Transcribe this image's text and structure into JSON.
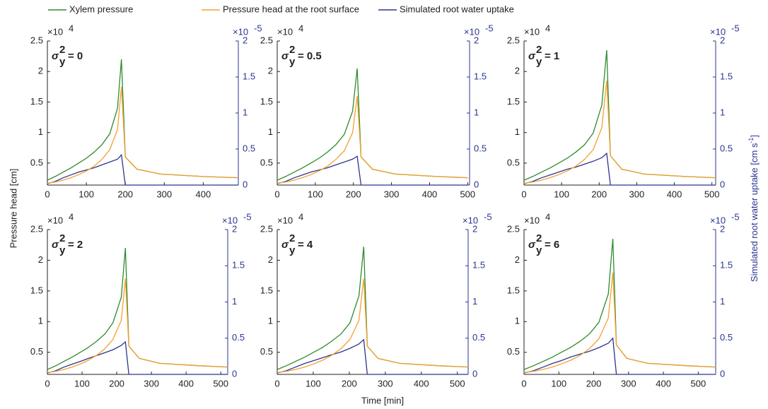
{
  "figure": {
    "xlabel": "Time [min]",
    "ylabel": "Pressure head [cm]",
    "y2label": {
      "text": "Simulated root water uptake [cm s",
      "exponent": "-1",
      "close": "]"
    },
    "y_multiplier": {
      "base": "×10",
      "exponent": "4"
    },
    "y2_multiplier": {
      "base": "×10",
      "exponent": "-5"
    }
  },
  "chart_data": [
    {
      "type": "line",
      "title": {
        "symbol": "σ",
        "superscript": "2",
        "subscript": "y",
        "text": "= 0"
      },
      "x": [
        0,
        20,
        40,
        60,
        80,
        100,
        120,
        140,
        160,
        180,
        190,
        200,
        230,
        290,
        400,
        490
      ],
      "xlim": [
        0,
        490
      ],
      "xticks": [
        0,
        100,
        200,
        300,
        400
      ],
      "ylim": [
        0.14,
        2.5
      ],
      "yticks": [
        0.5,
        1,
        1.5,
        2,
        2.5
      ],
      "y2lim": [
        0,
        2
      ],
      "y2ticks": [
        0,
        0.5,
        1,
        1.5,
        2
      ],
      "series": [
        {
          "name": "Xylem pressure",
          "color": "#2e8b2e",
          "values": [
            0.22,
            0.28,
            0.35,
            0.42,
            0.5,
            0.58,
            0.68,
            0.8,
            0.98,
            1.4,
            2.2,
            0.6,
            0.4,
            0.32,
            0.28,
            0.26
          ]
        },
        {
          "name": "Pressure head at the root surface",
          "color": "#f5a030",
          "values": [
            0.17,
            0.19,
            0.22,
            0.26,
            0.31,
            0.37,
            0.45,
            0.56,
            0.72,
            1.05,
            1.75,
            0.6,
            0.4,
            0.32,
            0.28,
            0.26
          ]
        },
        {
          "name": "Simulated root water uptake",
          "color": "#2b3590",
          "axis": "y2",
          "values": [
            0.02,
            0.05,
            0.1,
            0.14,
            0.18,
            0.21,
            0.24,
            0.28,
            0.32,
            0.36,
            0.42,
            0,
            0,
            0,
            0,
            0
          ]
        }
      ]
    },
    {
      "type": "line",
      "title": {
        "symbol": "σ",
        "superscript": "2",
        "subscript": "y",
        "text": "= 0.5"
      },
      "x": [
        0,
        22,
        44,
        66,
        88,
        110,
        132,
        154,
        176,
        198,
        210,
        220,
        250,
        310,
        420,
        500
      ],
      "xlim": [
        0,
        505
      ],
      "xticks": [
        0,
        100,
        200,
        300,
        400,
        500
      ],
      "ylim": [
        0.14,
        2.5
      ],
      "yticks": [
        0.5,
        1,
        1.5,
        2,
        2.5
      ],
      "y2lim": [
        0,
        2
      ],
      "y2ticks": [
        0,
        0.5,
        1,
        1.5,
        2
      ],
      "series": [
        {
          "name": "Xylem pressure",
          "color": "#2e8b2e",
          "values": [
            0.22,
            0.28,
            0.35,
            0.42,
            0.5,
            0.58,
            0.68,
            0.8,
            0.97,
            1.35,
            2.05,
            0.6,
            0.4,
            0.32,
            0.28,
            0.26
          ]
        },
        {
          "name": "Pressure head at the root surface",
          "color": "#f5a030",
          "values": [
            0.17,
            0.19,
            0.22,
            0.26,
            0.31,
            0.37,
            0.45,
            0.56,
            0.7,
            1.0,
            1.6,
            0.6,
            0.4,
            0.32,
            0.28,
            0.26
          ]
        },
        {
          "name": "Simulated root water uptake",
          "color": "#2b3590",
          "axis": "y2",
          "values": [
            0.02,
            0.05,
            0.1,
            0.14,
            0.18,
            0.21,
            0.24,
            0.28,
            0.32,
            0.36,
            0.4,
            0,
            0,
            0,
            0,
            0
          ]
        }
      ]
    },
    {
      "type": "line",
      "title": {
        "symbol": "σ",
        "superscript": "2",
        "subscript": "y",
        "text": "= 1"
      },
      "x": [
        0,
        23,
        46,
        69,
        92,
        115,
        138,
        161,
        184,
        207,
        220,
        230,
        260,
        320,
        430,
        510
      ],
      "xlim": [
        0,
        510
      ],
      "xticks": [
        0,
        100,
        200,
        300,
        400,
        500
      ],
      "ylim": [
        0.14,
        2.5
      ],
      "yticks": [
        0.5,
        1,
        1.5,
        2,
        2.5
      ],
      "y2lim": [
        0,
        2
      ],
      "y2ticks": [
        0,
        0.5,
        1,
        1.5,
        2
      ],
      "series": [
        {
          "name": "Xylem pressure",
          "color": "#2e8b2e",
          "values": [
            0.22,
            0.28,
            0.35,
            0.42,
            0.5,
            0.58,
            0.68,
            0.8,
            0.99,
            1.45,
            2.35,
            0.62,
            0.4,
            0.32,
            0.28,
            0.26
          ]
        },
        {
          "name": "Pressure head at the root surface",
          "color": "#f5a030",
          "values": [
            0.17,
            0.19,
            0.22,
            0.26,
            0.31,
            0.37,
            0.45,
            0.56,
            0.72,
            1.08,
            1.85,
            0.62,
            0.4,
            0.32,
            0.28,
            0.26
          ]
        },
        {
          "name": "Simulated root water uptake",
          "color": "#2b3590",
          "axis": "y2",
          "values": [
            0.02,
            0.05,
            0.1,
            0.14,
            0.18,
            0.22,
            0.25,
            0.29,
            0.33,
            0.38,
            0.44,
            0,
            0,
            0,
            0,
            0
          ]
        }
      ]
    },
    {
      "type": "line",
      "title": {
        "symbol": "σ",
        "superscript": "2",
        "subscript": "y",
        "text": "= 2"
      },
      "x": [
        0,
        24,
        47,
        71,
        95,
        118,
        142,
        166,
        189,
        213,
        225,
        235,
        265,
        325,
        440,
        520
      ],
      "xlim": [
        0,
        520
      ],
      "xticks": [
        0,
        100,
        200,
        300,
        400,
        500
      ],
      "ylim": [
        0.14,
        2.5
      ],
      "yticks": [
        0.5,
        1,
        1.5,
        2,
        2.5
      ],
      "y2lim": [
        0,
        2
      ],
      "y2ticks": [
        0,
        0.5,
        1,
        1.5,
        2
      ],
      "series": [
        {
          "name": "Xylem pressure",
          "color": "#2e8b2e",
          "values": [
            0.22,
            0.28,
            0.35,
            0.42,
            0.5,
            0.58,
            0.68,
            0.8,
            0.98,
            1.4,
            2.2,
            0.6,
            0.4,
            0.32,
            0.28,
            0.26
          ]
        },
        {
          "name": "Pressure head at the root surface",
          "color": "#f5a030",
          "values": [
            0.17,
            0.19,
            0.22,
            0.26,
            0.31,
            0.37,
            0.45,
            0.56,
            0.71,
            1.02,
            1.7,
            0.6,
            0.4,
            0.32,
            0.28,
            0.26
          ]
        },
        {
          "name": "Simulated root water uptake",
          "color": "#2b3590",
          "axis": "y2",
          "values": [
            0.02,
            0.05,
            0.1,
            0.14,
            0.18,
            0.22,
            0.26,
            0.3,
            0.34,
            0.4,
            0.45,
            0,
            0,
            0,
            0,
            0
          ]
        }
      ]
    },
    {
      "type": "line",
      "title": {
        "symbol": "σ",
        "superscript": "2",
        "subscript": "y",
        "text": "= 4"
      },
      "x": [
        0,
        25,
        50,
        76,
        101,
        126,
        151,
        177,
        202,
        227,
        240,
        250,
        280,
        340,
        450,
        530
      ],
      "xlim": [
        0,
        530
      ],
      "xticks": [
        0,
        100,
        200,
        300,
        400,
        500
      ],
      "ylim": [
        0.14,
        2.5
      ],
      "yticks": [
        0.5,
        1,
        1.5,
        2,
        2.5
      ],
      "y2lim": [
        0,
        2
      ],
      "y2ticks": [
        0,
        0.5,
        1,
        1.5,
        2
      ],
      "series": [
        {
          "name": "Xylem pressure",
          "color": "#2e8b2e",
          "values": [
            0.22,
            0.28,
            0.35,
            0.42,
            0.5,
            0.58,
            0.68,
            0.8,
            0.98,
            1.42,
            2.22,
            0.6,
            0.4,
            0.32,
            0.28,
            0.26
          ]
        },
        {
          "name": "Pressure head at the root surface",
          "color": "#f5a030",
          "values": [
            0.17,
            0.19,
            0.22,
            0.26,
            0.31,
            0.37,
            0.45,
            0.56,
            0.71,
            1.02,
            1.7,
            0.6,
            0.4,
            0.32,
            0.28,
            0.26
          ]
        },
        {
          "name": "Simulated root water uptake",
          "color": "#2b3590",
          "axis": "y2",
          "values": [
            0.02,
            0.05,
            0.1,
            0.15,
            0.19,
            0.23,
            0.27,
            0.31,
            0.36,
            0.42,
            0.48,
            0,
            0,
            0,
            0,
            0
          ]
        }
      ]
    },
    {
      "type": "line",
      "title": {
        "symbol": "σ",
        "superscript": "2",
        "subscript": "y",
        "text": "= 6"
      },
      "x": [
        0,
        27,
        54,
        81,
        107,
        134,
        161,
        188,
        215,
        242,
        255,
        265,
        295,
        355,
        470,
        550
      ],
      "xlim": [
        0,
        550
      ],
      "xticks": [
        0,
        100,
        200,
        300,
        400,
        500
      ],
      "ylim": [
        0.14,
        2.5
      ],
      "yticks": [
        0.5,
        1,
        1.5,
        2,
        2.5
      ],
      "y2lim": [
        0,
        2
      ],
      "y2ticks": [
        0,
        0.5,
        1,
        1.5,
        2
      ],
      "series": [
        {
          "name": "Xylem pressure",
          "color": "#2e8b2e",
          "values": [
            0.22,
            0.28,
            0.35,
            0.42,
            0.5,
            0.58,
            0.68,
            0.8,
            0.99,
            1.45,
            2.35,
            0.62,
            0.4,
            0.32,
            0.28,
            0.26
          ]
        },
        {
          "name": "Pressure head at the root surface",
          "color": "#f5a030",
          "values": [
            0.17,
            0.19,
            0.22,
            0.26,
            0.31,
            0.37,
            0.45,
            0.56,
            0.72,
            1.06,
            1.8,
            0.62,
            0.4,
            0.32,
            0.28,
            0.26
          ]
        },
        {
          "name": "Simulated root water uptake",
          "color": "#2b3590",
          "axis": "y2",
          "values": [
            0.02,
            0.05,
            0.1,
            0.15,
            0.19,
            0.24,
            0.28,
            0.32,
            0.37,
            0.43,
            0.5,
            0,
            0,
            0,
            0,
            0
          ]
        }
      ]
    }
  ]
}
